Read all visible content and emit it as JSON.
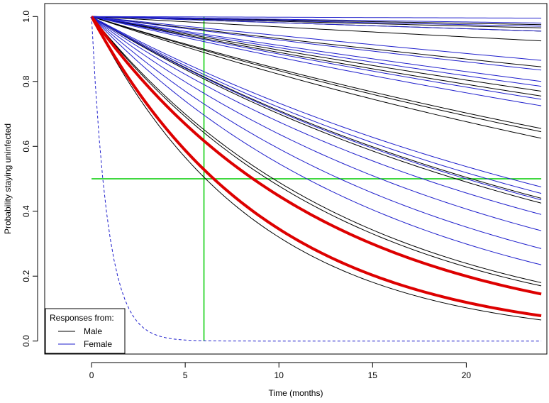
{
  "chart_data": {
    "type": "line",
    "title": "",
    "xlabel": "Time (months)",
    "ylabel": "Probability staying uninfected",
    "xlim": [
      -2.5,
      24.3
    ],
    "ylim": [
      -0.04,
      1.04
    ],
    "x_ticks": [
      0,
      5,
      10,
      15,
      20
    ],
    "y_ticks": [
      0.0,
      0.2,
      0.4,
      0.6,
      0.8,
      1.0
    ],
    "x_tick_labels": [
      "0",
      "5",
      "10",
      "15",
      "20"
    ],
    "y_tick_labels": [
      "0.0",
      "0.2",
      "0.4",
      "0.6",
      "0.8",
      "1.0"
    ],
    "x_range_months": [
      0,
      24
    ],
    "curve_model": "exponential survival S(t) = exp(-t * ln(1/S24) / 24), S24 = probability at 24 months",
    "series": [
      {
        "name": "Male responses (S at 24 months)",
        "color": "#000000",
        "width": 1,
        "end_values": [
          0.975,
          0.965,
          0.955,
          0.925,
          0.845,
          0.77,
          0.755,
          0.655,
          0.645,
          0.625,
          0.44,
          0.425,
          0.18,
          0.17,
          0.065
        ]
      },
      {
        "name": "Female responses (S at 24 months)",
        "color": "#1f1fcc",
        "width": 1,
        "end_values": [
          0.995,
          0.98,
          0.97,
          0.955,
          0.865,
          0.835,
          0.8,
          0.785,
          0.745,
          0.725,
          0.475,
          0.455,
          0.435,
          0.39,
          0.34,
          0.285,
          0.235
        ]
      },
      {
        "name": "Highlighted (red)",
        "color": "#dd0000",
        "width": 4,
        "end_values": [
          0.145,
          0.078
        ]
      },
      {
        "name": "Dashed reference",
        "color": "#1f1fcc",
        "style": "dashed",
        "half_life_months": 0.6
      }
    ],
    "reference_lines": {
      "color": "#00cc00",
      "vertical_x": 6,
      "horizontal_y": 0.5
    },
    "legend": {
      "title": "Responses from:",
      "position": "bottom-left",
      "entries": [
        {
          "label": "Male",
          "color": "#000000"
        },
        {
          "label": "Female",
          "color": "#1f1fcc"
        }
      ]
    }
  }
}
